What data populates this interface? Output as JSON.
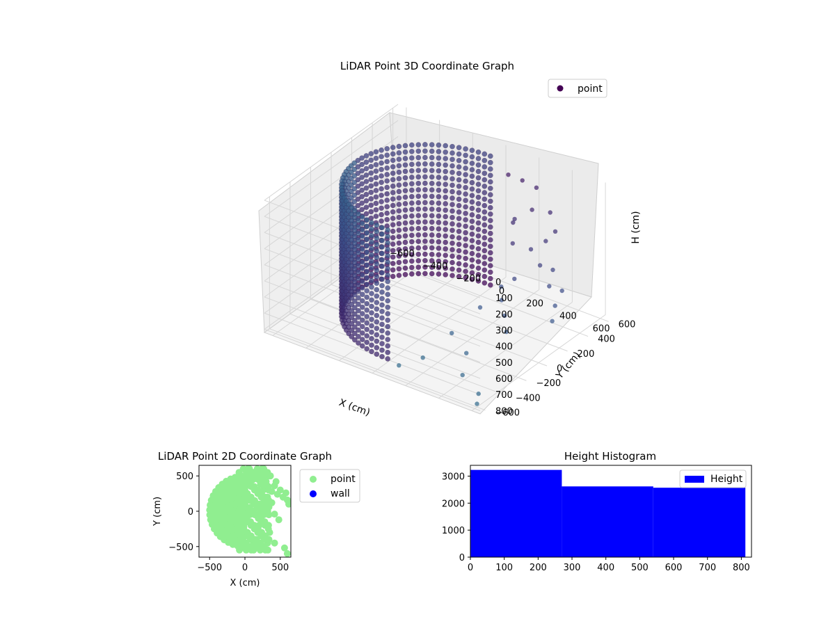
{
  "chart_data": [
    {
      "type": "scatter",
      "projection": "3d",
      "title": "LiDAR Point 3D Coordinate Graph",
      "xlabel": "X (cm)",
      "ylabel": "Y (cm)",
      "zlabel": "H (cm)",
      "xlim": [
        -650,
        650
      ],
      "ylim": [
        -650,
        650
      ],
      "zlim": [
        0,
        820
      ],
      "z_inverted": true,
      "xticks": [
        -600,
        -400,
        -200,
        0,
        200,
        400,
        600
      ],
      "yticks": [
        -600,
        -400,
        -200,
        0,
        200,
        400,
        600
      ],
      "zticks": [
        0,
        100,
        200,
        300,
        400,
        500,
        600,
        700,
        800
      ],
      "grid": true,
      "legend": {
        "placement": "upper-right",
        "entries": [
          "point"
        ]
      },
      "colormap": "viridis",
      "shape": {
        "description": "half-cylinder wall of points, radius ~500 cm, open toward +X, height 0-800 cm, plus scattered outliers",
        "wall_radius": 500,
        "wall_height": [
          0,
          800
        ]
      },
      "outliers": [
        {
          "x": 120,
          "y": 480,
          "h": 60
        },
        {
          "x": 180,
          "y": 520,
          "h": 90
        },
        {
          "x": 240,
          "y": 560,
          "h": 130
        },
        {
          "x": 300,
          "y": 420,
          "h": 180
        },
        {
          "x": 360,
          "y": 500,
          "h": 210
        },
        {
          "x": 220,
          "y": 380,
          "h": 250
        },
        {
          "x": 420,
          "y": 360,
          "h": 300
        },
        {
          "x": 380,
          "y": 280,
          "h": 330
        },
        {
          "x": 460,
          "y": 240,
          "h": 380
        },
        {
          "x": 500,
          "y": 300,
          "h": 420
        },
        {
          "x": 540,
          "y": 200,
          "h": 460
        },
        {
          "x": 580,
          "y": 260,
          "h": 500
        },
        {
          "x": 600,
          "y": 160,
          "h": 540
        },
        {
          "x": 620,
          "y": 100,
          "h": 600
        },
        {
          "x": 300,
          "y": 120,
          "h": 520
        },
        {
          "x": 340,
          "y": 60,
          "h": 560
        },
        {
          "x": 260,
          "y": -20,
          "h": 600
        },
        {
          "x": 420,
          "y": -40,
          "h": 580
        },
        {
          "x": 480,
          "y": -120,
          "h": 620
        },
        {
          "x": 200,
          "y": -200,
          "h": 700
        },
        {
          "x": 350,
          "y": -300,
          "h": 720
        },
        {
          "x": 150,
          "y": -400,
          "h": 780
        },
        {
          "x": 420,
          "y": -450,
          "h": 760
        },
        {
          "x": 560,
          "y": -520,
          "h": 790
        },
        {
          "x": 600,
          "y": -600,
          "h": 800
        },
        {
          "x": 80,
          "y": -520,
          "h": 800
        },
        {
          "x": 260,
          "y": 300,
          "h": 220
        },
        {
          "x": 320,
          "y": 200,
          "h": 280
        },
        {
          "x": 440,
          "y": 420,
          "h": 260
        },
        {
          "x": 380,
          "y": 120,
          "h": 440
        }
      ]
    },
    {
      "type": "scatter",
      "title": "LiDAR Point 2D Coordinate Graph",
      "xlabel": "X (cm)",
      "ylabel": "Y (cm)",
      "xlim": [
        -650,
        650
      ],
      "ylim": [
        -650,
        650
      ],
      "xticks": [
        -500,
        0,
        500
      ],
      "yticks": [
        -500,
        0,
        500
      ],
      "legend": {
        "placement": "outside-right",
        "entries": [
          "point",
          "wall"
        ]
      },
      "series": [
        {
          "name": "point",
          "color": "#90ee90"
        },
        {
          "name": "wall",
          "color": "#0000ff"
        }
      ]
    },
    {
      "type": "bar",
      "subtype": "histogram",
      "title": "Height Histogram",
      "xlim": [
        0,
        830
      ],
      "ylim": [
        0,
        3400
      ],
      "xticks": [
        0,
        100,
        200,
        300,
        400,
        500,
        600,
        700,
        800
      ],
      "yticks": [
        0,
        1000,
        2000,
        3000
      ],
      "legend": {
        "placement": "upper-right",
        "entries": [
          "Height"
        ]
      },
      "color": "#0000ff",
      "bins": [
        {
          "start": 0,
          "end": 270,
          "count": 3230
        },
        {
          "start": 270,
          "end": 540,
          "count": 2620
        },
        {
          "start": 540,
          "end": 812,
          "count": 2570
        }
      ]
    }
  ]
}
